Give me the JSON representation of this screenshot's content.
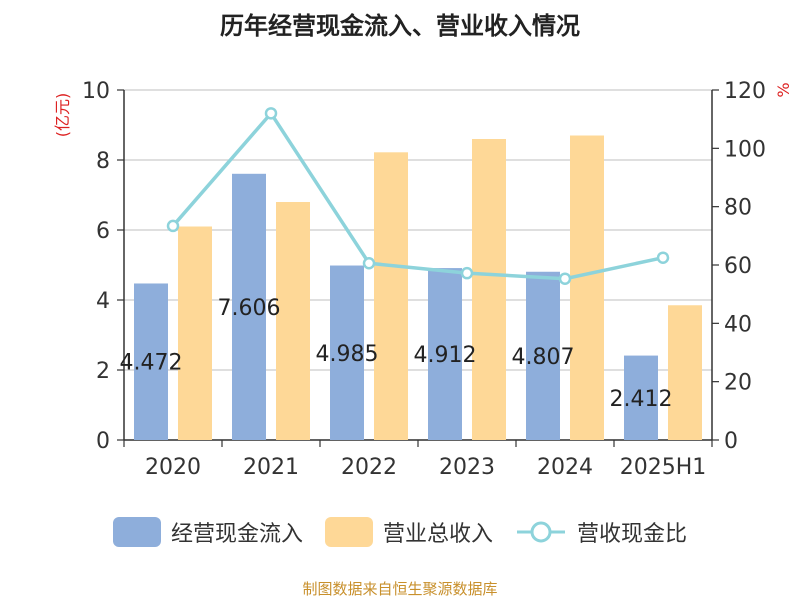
{
  "chart_data": {
    "type": "bar",
    "title": "历年经营现金流入、营业收入情况",
    "categories": [
      "2020",
      "2021",
      "2022",
      "2023",
      "2024",
      "2025H1"
    ],
    "series": [
      {
        "name": "经营现金流入",
        "type": "bar",
        "axis": "left",
        "color": "#8eaedb",
        "values": [
          4.472,
          7.606,
          4.985,
          4.912,
          4.807,
          2.412
        ]
      },
      {
        "name": "营业总收入",
        "type": "bar",
        "axis": "left",
        "color": "#fed897",
        "values": [
          6.1,
          6.8,
          8.22,
          8.6,
          8.7,
          3.85
        ]
      },
      {
        "name": "营收现金比",
        "type": "line",
        "axis": "right",
        "color": "#8dd3db",
        "values": [
          73.4,
          112.0,
          60.6,
          57.2,
          55.3,
          62.5
        ]
      }
    ],
    "data_labels": [
      "4.472",
      "7.606",
      "4.985",
      "4.912",
      "4.807",
      "2.412"
    ],
    "ylabel_left": "(亿元)",
    "ylabel_right": "%",
    "ylim_left": [
      0,
      10
    ],
    "ylim_right": [
      0,
      120
    ],
    "yticks_left": [
      "0",
      "2",
      "4",
      "6",
      "8",
      "10"
    ],
    "yticks_right": [
      "0",
      "20",
      "40",
      "60",
      "80",
      "100",
      "120"
    ],
    "grid": true,
    "legend_position": "bottom"
  },
  "source_text": "制图数据来自恒生聚源数据库"
}
